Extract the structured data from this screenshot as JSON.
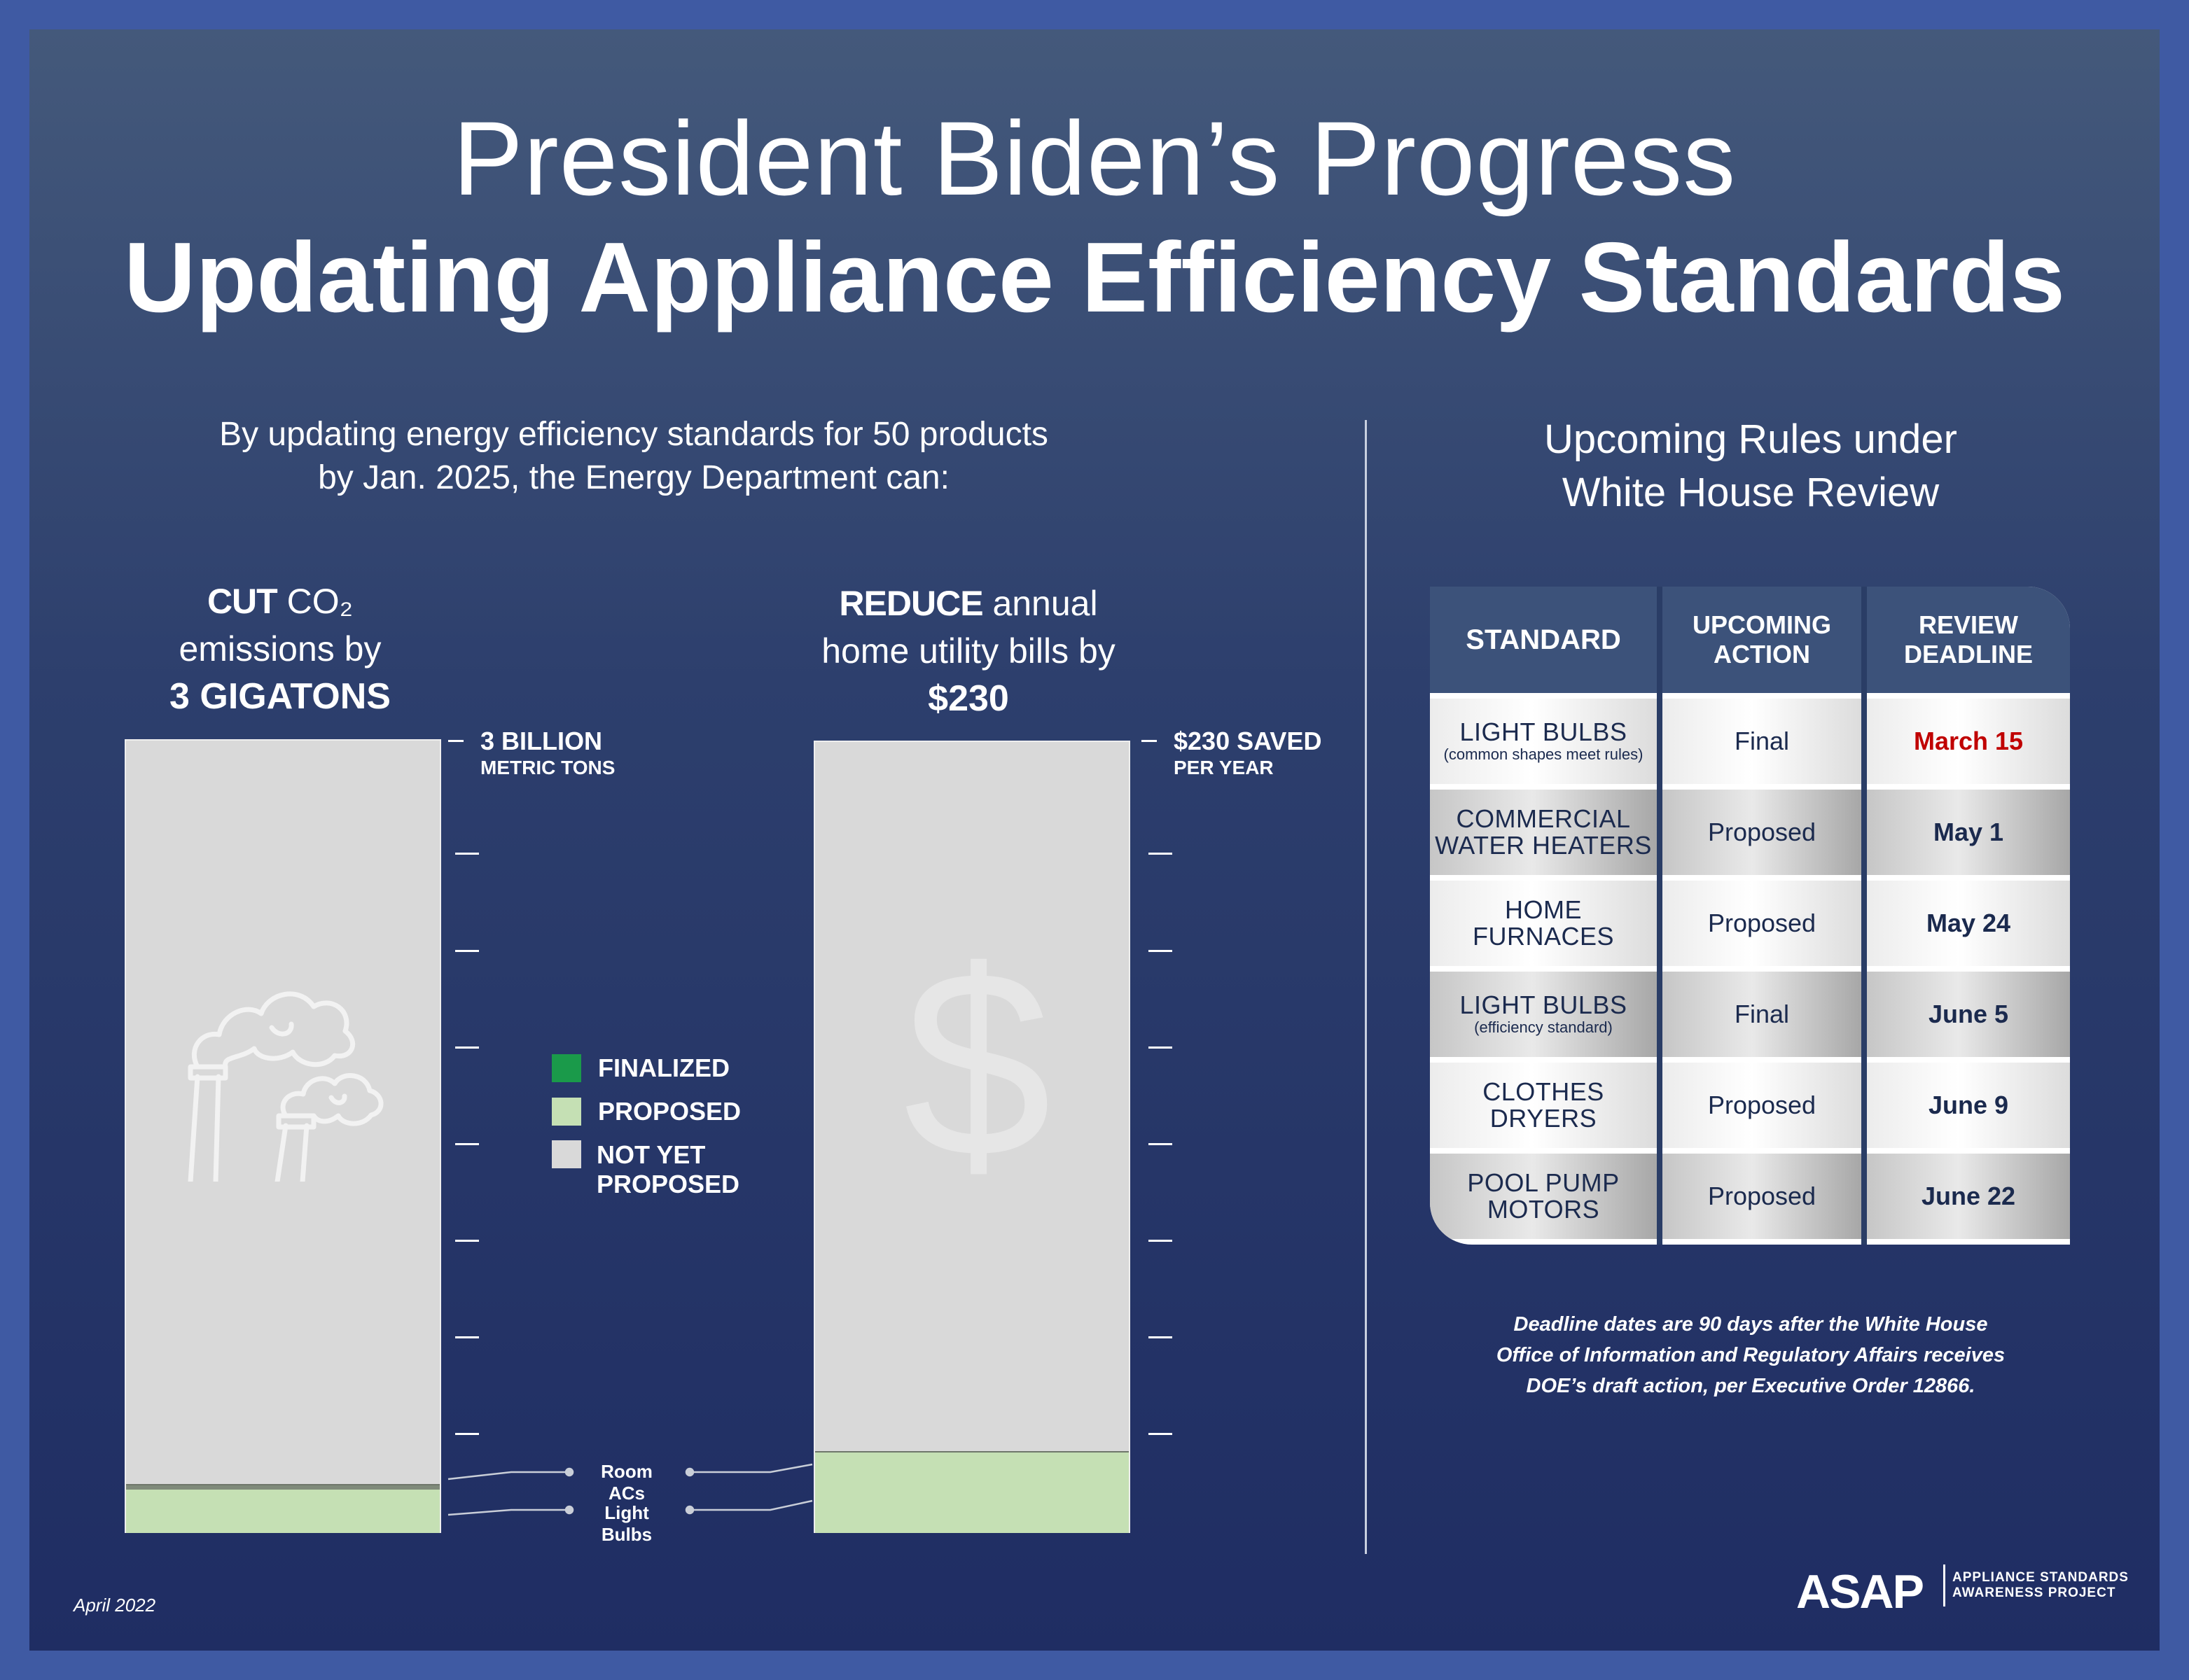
{
  "colors": {
    "frame": "#3f5aa3",
    "finalized": "#1a9a4a",
    "proposed": "#c5e0b4",
    "not_yet_proposed": "#d9d9d9",
    "deadline_highlight": "#c00000",
    "table_text": "#1b2a4e"
  },
  "header": {
    "title_line1": "President Biden’s Progress",
    "title_line2": "Updating Appliance Efficiency Standards"
  },
  "intro": {
    "line1": "By updating energy efficiency standards for 50 products",
    "line2": "by Jan. 2025, the Energy Department can:"
  },
  "co2": {
    "head_bold": "CUT",
    "head_rest": " CO₂",
    "head_line2": "emissions by",
    "head_big": "3 GIGATONS",
    "top_label": "3 BILLION",
    "top_sub": "METRIC TONS",
    "icon": "smokestack-icon"
  },
  "bills": {
    "head_bold": "REDUCE",
    "head_rest": " annual",
    "head_line2": "home utility bills by",
    "head_big": "$230",
    "top_label": "$230 SAVED",
    "top_sub": "PER YEAR",
    "icon": "dollar-icon",
    "icon_glyph": "$"
  },
  "chart_data": [
    {
      "type": "bar",
      "categories": [
        "CO₂ emissions cut"
      ],
      "max": "3 BILLION METRIC TONS",
      "segments": [
        {
          "name": "Light Bulbs",
          "status": "proposed",
          "share_of_total": 0.055
        },
        {
          "name": "Room ACs",
          "status": "finalized",
          "share_of_total": 0.005
        }
      ]
    },
    {
      "type": "bar",
      "categories": [
        "Annual home utility bill savings"
      ],
      "max": "$230 SAVED PER YEAR",
      "segments": [
        {
          "name": "Light Bulbs",
          "status": "proposed",
          "share_of_total": 0.077
        },
        {
          "name": "Room ACs",
          "status": "proposed",
          "share_of_total": 0.025
        }
      ]
    }
  ],
  "legend": {
    "finalized": "FINALIZED",
    "proposed": "PROPOSED",
    "not_yet_line1": "NOT YET",
    "not_yet_line2": "PROPOSED"
  },
  "callouts": {
    "room_acs": "Room ACs",
    "light_bulbs": "Light Bulbs"
  },
  "rules": {
    "title_line1": "Upcoming Rules under",
    "title_line2": "White House Review",
    "headers": {
      "standard": "STANDARD",
      "action_line1": "UPCOMING",
      "action_line2": "ACTION",
      "deadline_line1": "REVIEW",
      "deadline_line2": "DEADLINE"
    },
    "rows": [
      {
        "line1": "LIGHT BULBS",
        "line2": "",
        "sub": "(common shapes meet rules)",
        "action": "Final",
        "deadline": "March 15"
      },
      {
        "line1": "COMMERCIAL",
        "line2": "WATER HEATERS",
        "sub": "",
        "action": "Proposed",
        "deadline": "May 1"
      },
      {
        "line1": "HOME",
        "line2": "FURNACES",
        "sub": "",
        "action": "Proposed",
        "deadline": "May 24"
      },
      {
        "line1": "LIGHT BULBS",
        "line2": "",
        "sub": "(efficiency standard)",
        "action": "Final",
        "deadline": "June 5"
      },
      {
        "line1": "CLOTHES",
        "line2": "DRYERS",
        "sub": "",
        "action": "Proposed",
        "deadline": "June 9"
      },
      {
        "line1": "POOL PUMP",
        "line2": "MOTORS",
        "sub": "",
        "action": "Proposed",
        "deadline": "June 22"
      }
    ],
    "footnote_line1": "Deadline dates are 90 days after the White House",
    "footnote_line2": "Office of Information and Regulatory Affairs receives",
    "footnote_line3": "DOE’s draft action, per Executive Order 12866."
  },
  "footer": {
    "date": "April 2022",
    "logo": "ASAP",
    "org_line1": "APPLIANCE STANDARDS",
    "org_line2": "AWARENESS PROJECT"
  }
}
